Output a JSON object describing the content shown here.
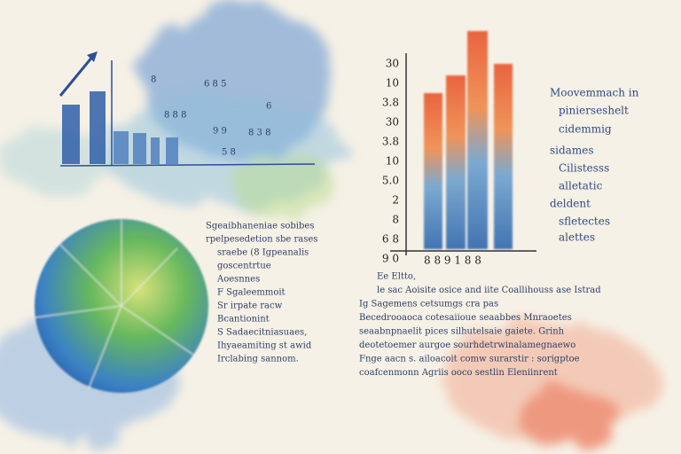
{
  "left_chart": {
    "labels": [
      "8",
      "6  8  5",
      "8  8  8",
      "6",
      "9  9",
      "8  3  8",
      "5  8"
    ]
  },
  "right_chart": {
    "y_labels": [
      "30",
      "10",
      "3.8",
      "30",
      "3.8",
      "10",
      "5.0",
      "2",
      "8",
      "6 8",
      "9 0"
    ],
    "x_labels": "8    8  9  1  8    8",
    "legend": [
      "Moovemmach in",
      "pinierseshelt",
      "cidemmig",
      "sidames",
      "Cilistesss",
      "alletatic",
      "deldent",
      "sfletectes",
      "alettes"
    ]
  },
  "pie_text": [
    "Sgeaibhaneniae sobibes",
    "rpelpesedetion sbe rases",
    "sraebe   (8 Igpeanalis",
    "goscentrtue",
    "Aoesnnes",
    "F  Sgaleemmoit",
    "Sr irpate racw",
    "Bcantionint",
    "S Sadaecitniasuaes,",
    "Ihyaeamiting st awid",
    "Irclabing sannom."
  ],
  "body_text": [
    "Ee  Eltto,",
    "le  sac  Aoisite  osice  and  iite  Coallihouss  ase  Istrad",
    "Ig  Sagemens cetsumgs  cra  pas",
    "Becedrooaoca  cotesaiioue  seaabbes  Mnraoetes",
    "seaabnpnaelit  pices  silhutelsaie gaiete.  Grinh",
    "deotetoemer aurgoe sourhdetrwinalamegnaewo",
    "Fnge  aacn  s. ailoacoit  comw  surarstir  :  sorigptoe",
    "coafcenmonn  Agriis  ooco  sestlin  Eleniinrent"
  ]
}
